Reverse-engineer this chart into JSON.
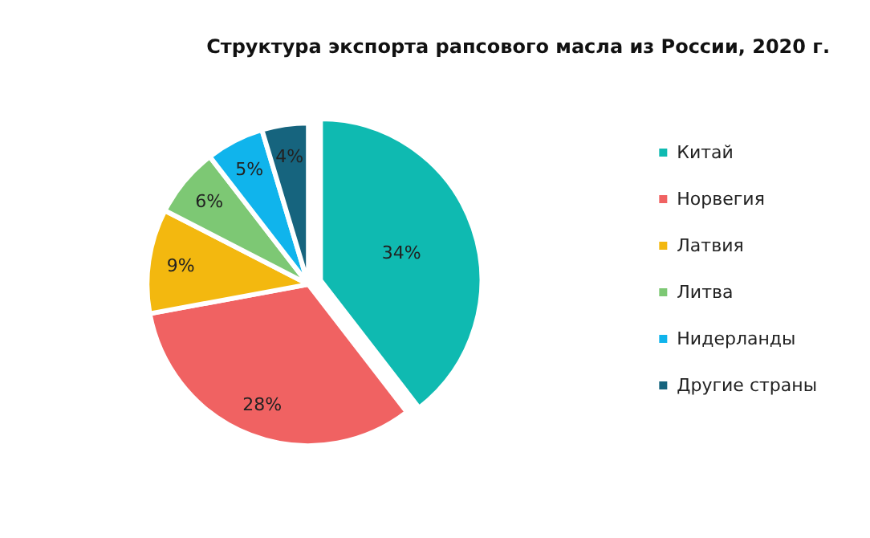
{
  "chart_data": {
    "type": "pie",
    "title": "Структура экспорта рапсового масла из России, 2020 г.",
    "categories": [
      "Китай",
      "Норвегия",
      "Латвия",
      "Литва",
      "Нидерланды",
      "Другие страны"
    ],
    "values": [
      34,
      28,
      9,
      6,
      5,
      4
    ],
    "value_labels": [
      "34%",
      "28%",
      "9%",
      "6%",
      "5%",
      "4%"
    ],
    "colors": [
      "#0fbab1",
      "#f06262",
      "#f3b80f",
      "#7dc874",
      "#10b4ec",
      "#16647e"
    ],
    "legend": "right"
  }
}
